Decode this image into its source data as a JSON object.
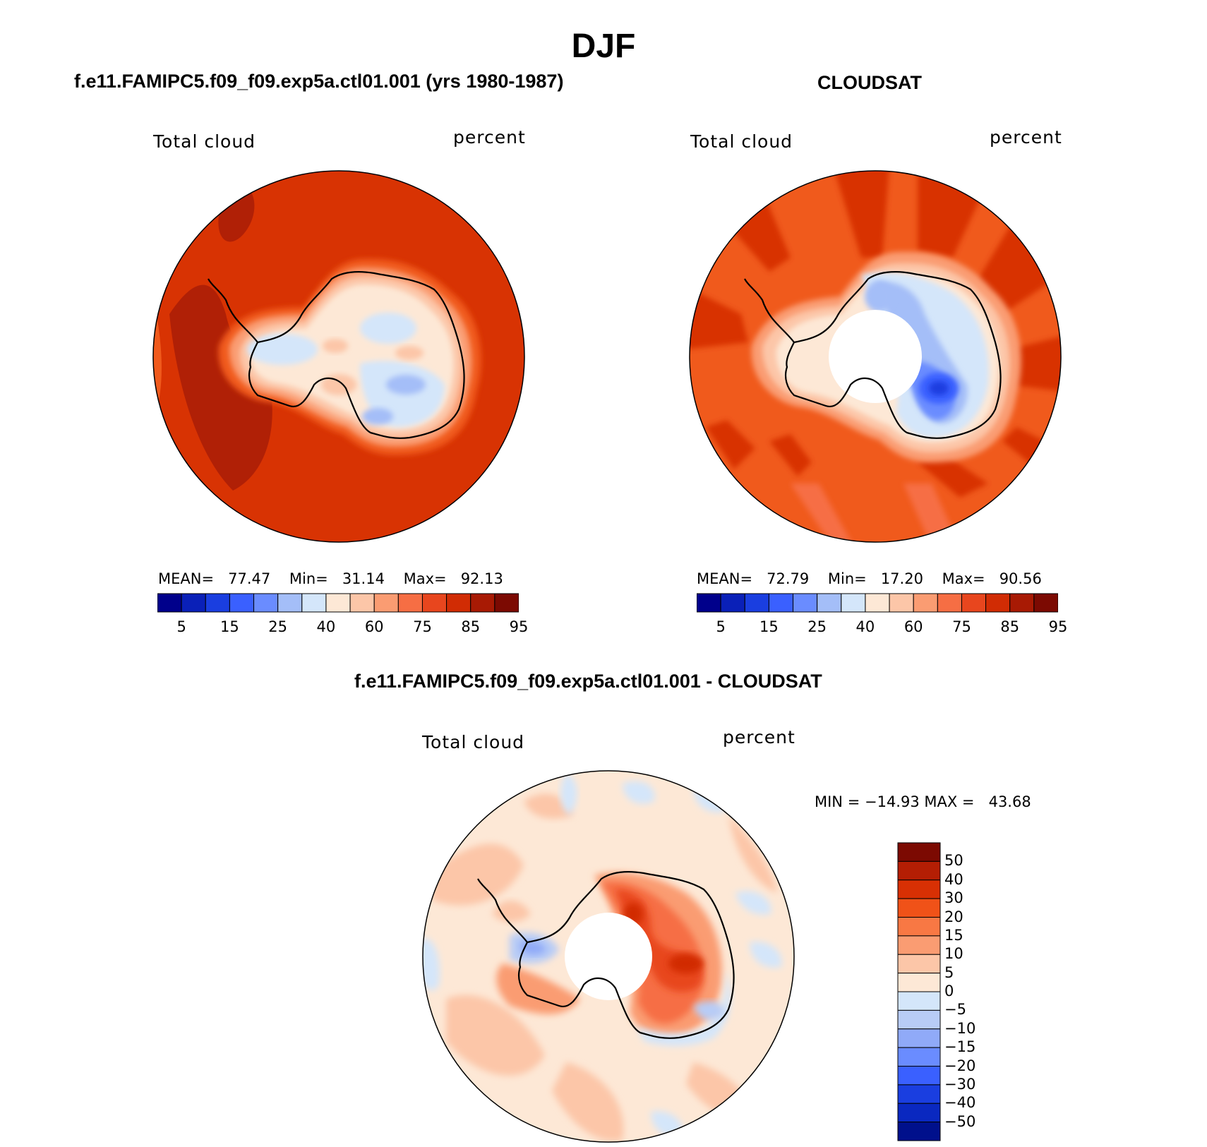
{
  "title": "DJF",
  "panels": [
    {
      "title": "f.e11.FAMIPC5.f09_f09.exp5a.ctl01.001 (yrs 1980-1987)",
      "variable": "Total cloud",
      "units": "percent",
      "stats": {
        "mean_label": "MEAN=",
        "mean": "77.47",
        "min_label": "Min=",
        "min": "31.14",
        "max_label": "Max=",
        "max": "92.13"
      },
      "polar_hole": false
    },
    {
      "title": "CLOUDSAT",
      "variable": "Total cloud",
      "units": "percent",
      "stats": {
        "mean_label": "MEAN=",
        "mean": "72.79",
        "min_label": "Min=",
        "min": "17.20",
        "max_label": "Max=",
        "max": "90.56"
      },
      "polar_hole": true
    },
    {
      "title": "f.e11.FAMIPC5.f09_f09.exp5a.ctl01.001 - CLOUDSAT",
      "variable": "Total cloud",
      "units": "percent",
      "stats": {
        "min_label": "MIN =",
        "min": "−14.93",
        "max_label": "MAX =",
        "max": "43.68"
      },
      "polar_hole": true
    }
  ],
  "colorbar_abs": {
    "colors": [
      "#00008b",
      "#0a20b8",
      "#1a3ee0",
      "#3a60ff",
      "#6a8cff",
      "#a4bef8",
      "#d4e6fa",
      "#fde8d6",
      "#fcc6a8",
      "#fa9c72",
      "#f66e44",
      "#e8461e",
      "#d12c04",
      "#a81a04",
      "#7c0a02"
    ],
    "ticks": [
      "5",
      "15",
      "25",
      "40",
      "60",
      "75",
      "85",
      "95"
    ]
  },
  "colorbar_diff": {
    "colors": [
      "#7c0a02",
      "#b41e04",
      "#d83004",
      "#f05218",
      "#f87844",
      "#fa9c72",
      "#fcc6a8",
      "#fde8d6",
      "#d4e6fa",
      "#b8ccf6",
      "#90aaf8",
      "#6a8cff",
      "#3a60ff",
      "#1a3ee0",
      "#0a28c0",
      "#00108c"
    ],
    "ticks": [
      "50",
      "40",
      "30",
      "20",
      "15",
      "10",
      "5",
      "0",
      "−5",
      "−10",
      "−15",
      "−20",
      "−30",
      "−40",
      "−50"
    ]
  }
}
